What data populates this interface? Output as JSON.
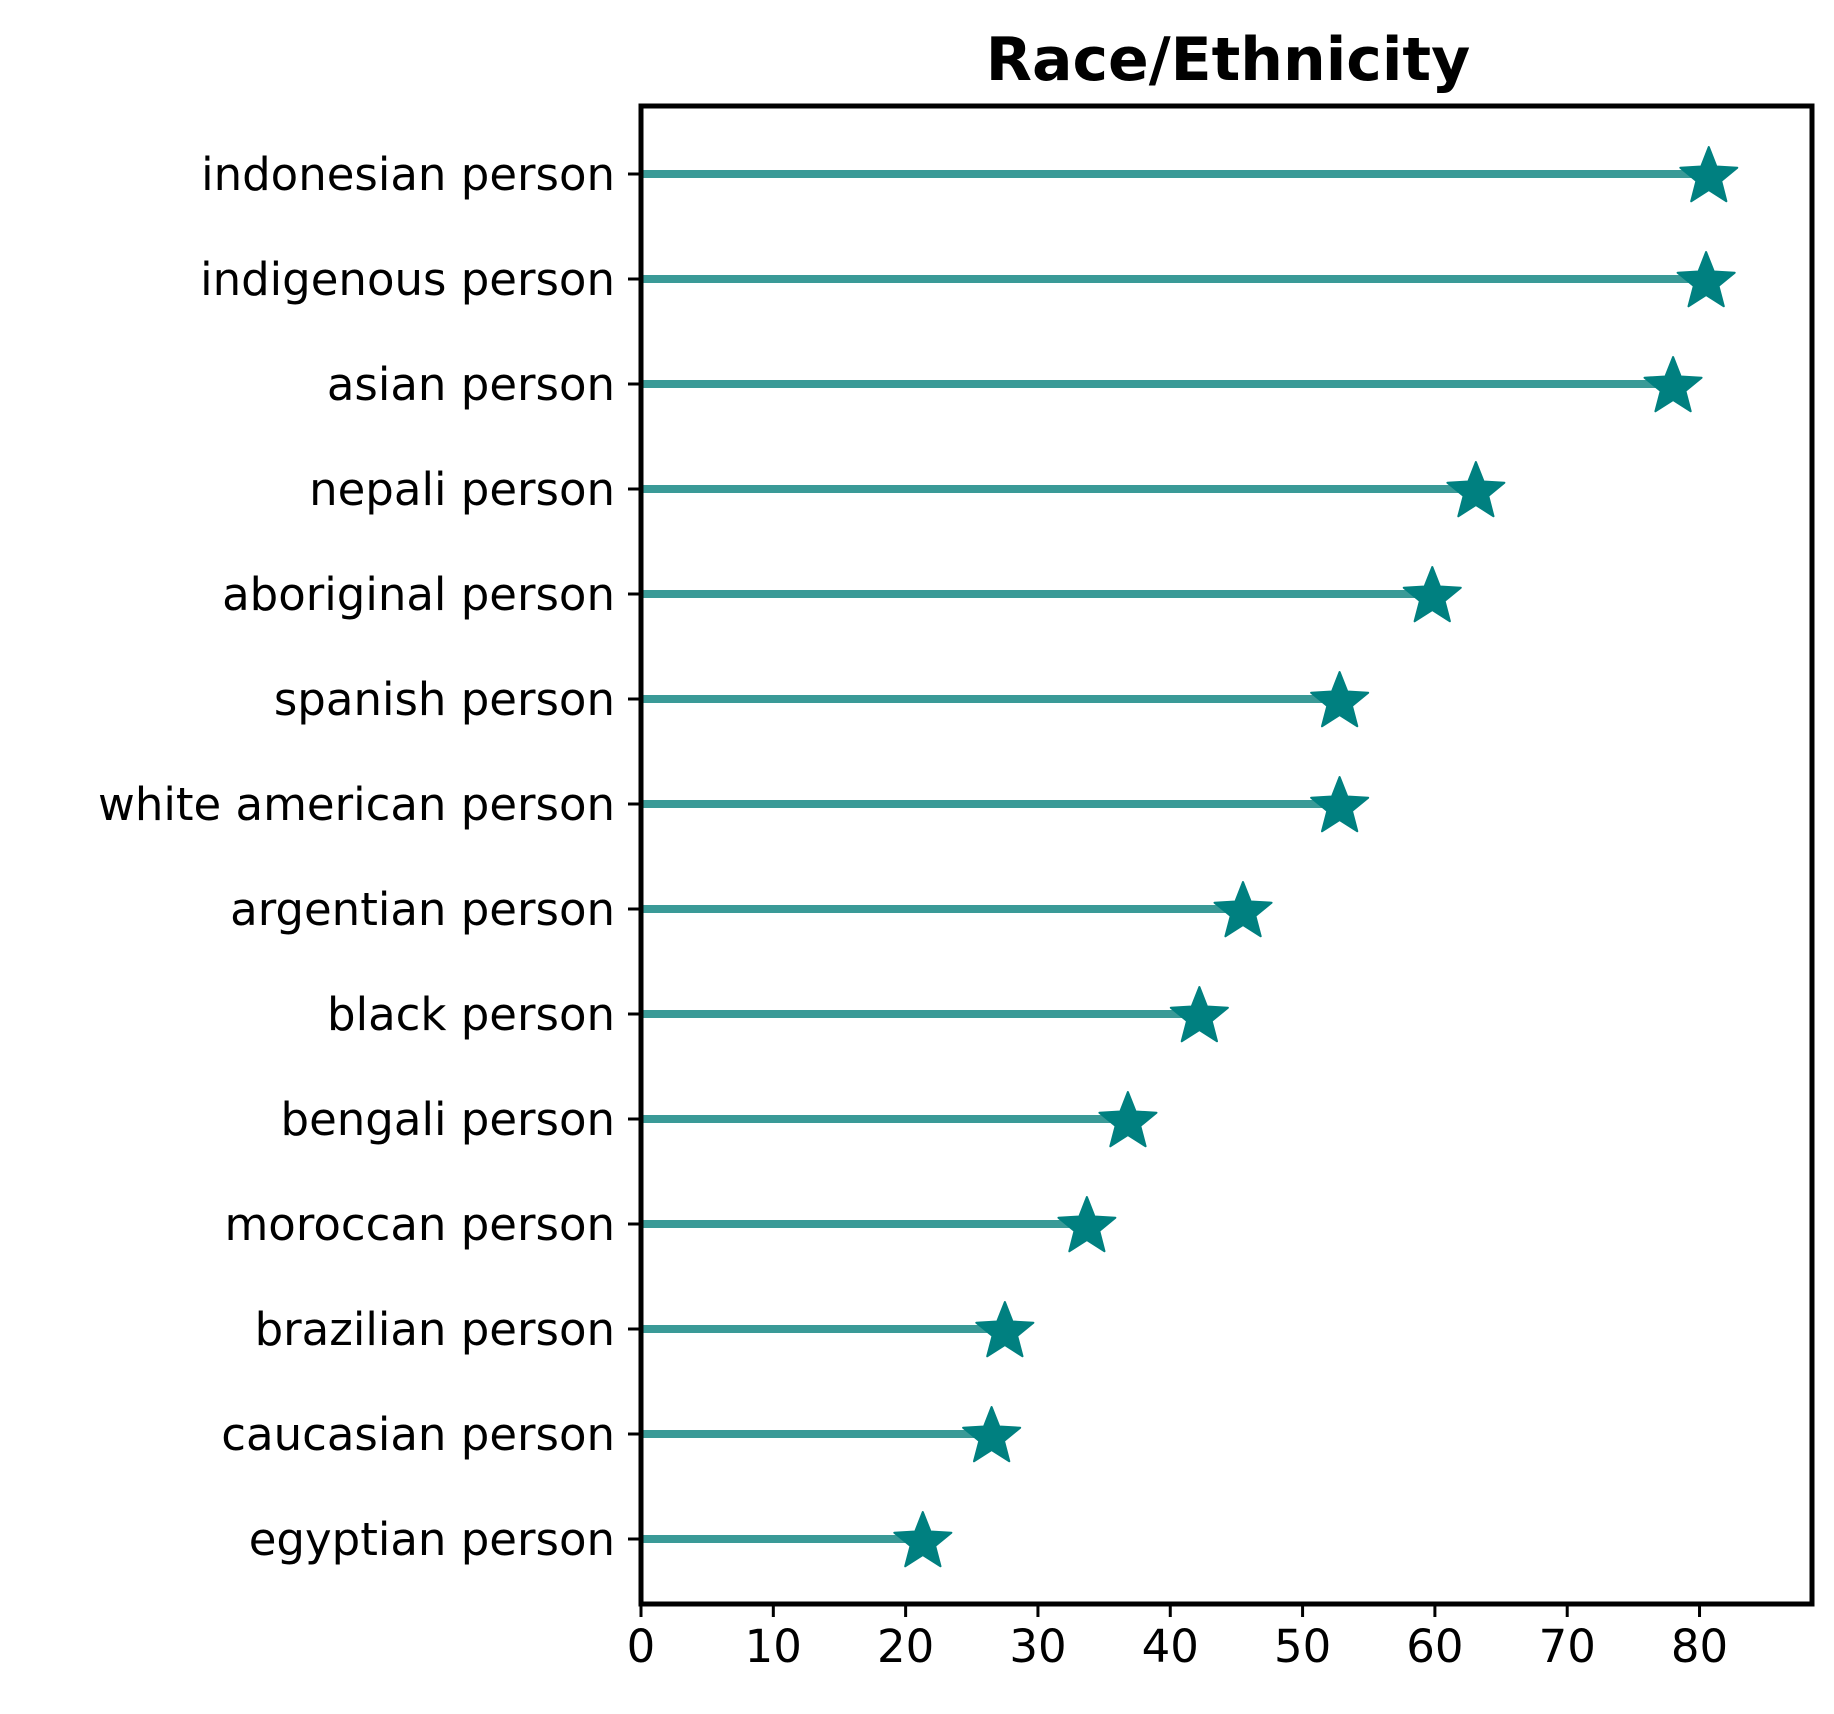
{
  "chart_data": {
    "type": "lollipop",
    "title": "Race/Ethnicity",
    "xlabel": "",
    "ylabel": "",
    "xlim": [
      0,
      88.5
    ],
    "xticks": [
      0,
      10,
      20,
      30,
      40,
      50,
      60,
      70,
      80
    ],
    "grid": false,
    "marker": "star",
    "colors": {
      "stem": "#3a9a97",
      "marker": "#008080",
      "axis": "#000000"
    },
    "categories": [
      "indonesian person",
      "indigenous person",
      "asian person",
      "nepali person",
      "aboriginal person",
      "spanish person",
      "white american person",
      "argentian person",
      "black person",
      "bengali person",
      "moroccan person",
      "brazilian person",
      "caucasian person",
      "egyptian person"
    ],
    "values": [
      80.7,
      80.5,
      78.0,
      63.1,
      59.8,
      52.8,
      52.8,
      45.5,
      42.2,
      36.8,
      33.7,
      27.5,
      26.5,
      21.3
    ]
  }
}
